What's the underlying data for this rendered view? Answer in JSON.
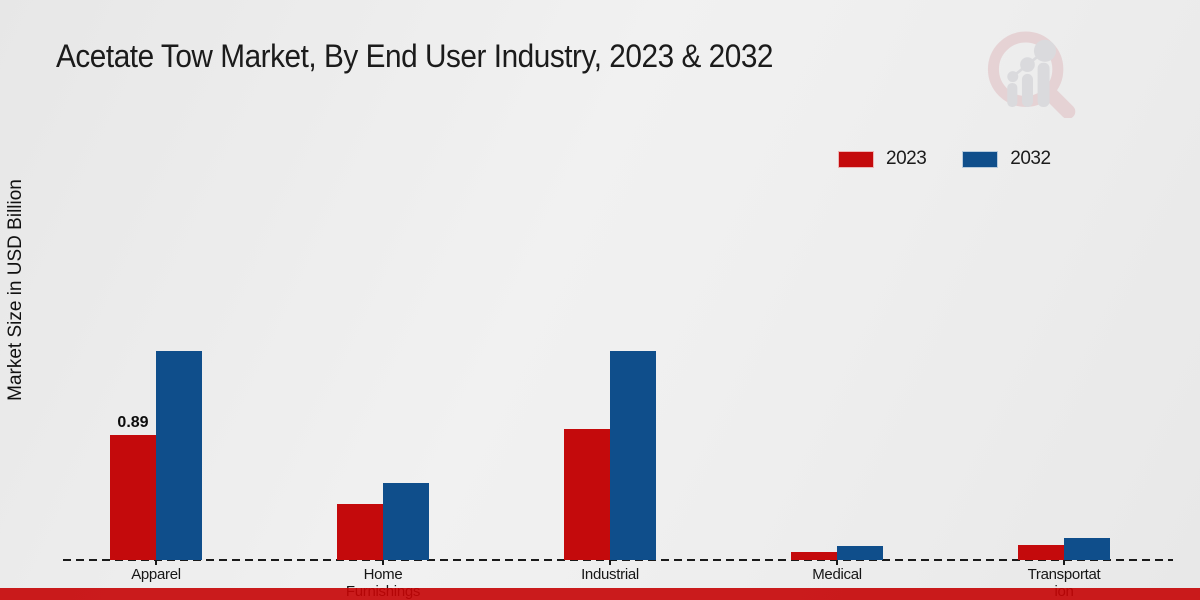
{
  "title": "Acetate Tow Market, By End User Industry, 2023 & 2032",
  "y_axis_label": "Market Size in USD Billion",
  "legend": [
    {
      "label": "2023",
      "color": "#c40a0c"
    },
    {
      "label": "2032",
      "color": "#0f4e8b"
    }
  ],
  "colors": {
    "bar_2023": "#c40a0c",
    "bar_2032": "#0f4e8b",
    "footer_band": "#c50304",
    "background": "#efefef",
    "text": "#1b1b1b"
  },
  "watermark": "market-research-magnifier-logo",
  "chart_data": {
    "type": "bar",
    "title": "Acetate Tow Market, By End User Industry, 2023 & 2032",
    "ylabel": "Market Size in USD Billion",
    "xlabel": "",
    "categories": [
      "Apparel",
      "Home Furnishings",
      "Industrial",
      "Medical",
      "Transportation"
    ],
    "category_label_lines": [
      [
        "Apparel"
      ],
      [
        "Home",
        "Furnishings"
      ],
      [
        "Industrial"
      ],
      [
        "Medical"
      ],
      [
        "Transportat",
        "ion"
      ]
    ],
    "series": [
      {
        "name": "2023",
        "color": "#c40a0c",
        "values": [
          0.89,
          0.4,
          0.93,
          0.06,
          0.11
        ]
      },
      {
        "name": "2032",
        "color": "#0f4e8b",
        "values": [
          1.49,
          0.55,
          1.49,
          0.1,
          0.16
        ]
      }
    ],
    "annotations": [
      {
        "category": "Apparel",
        "series": "2023",
        "text": "0.89"
      }
    ],
    "ylim": [
      0,
      1.6
    ],
    "grid": "dashed zero baseline only",
    "legend_position": "upper right",
    "axis_ticks_visible": true
  }
}
